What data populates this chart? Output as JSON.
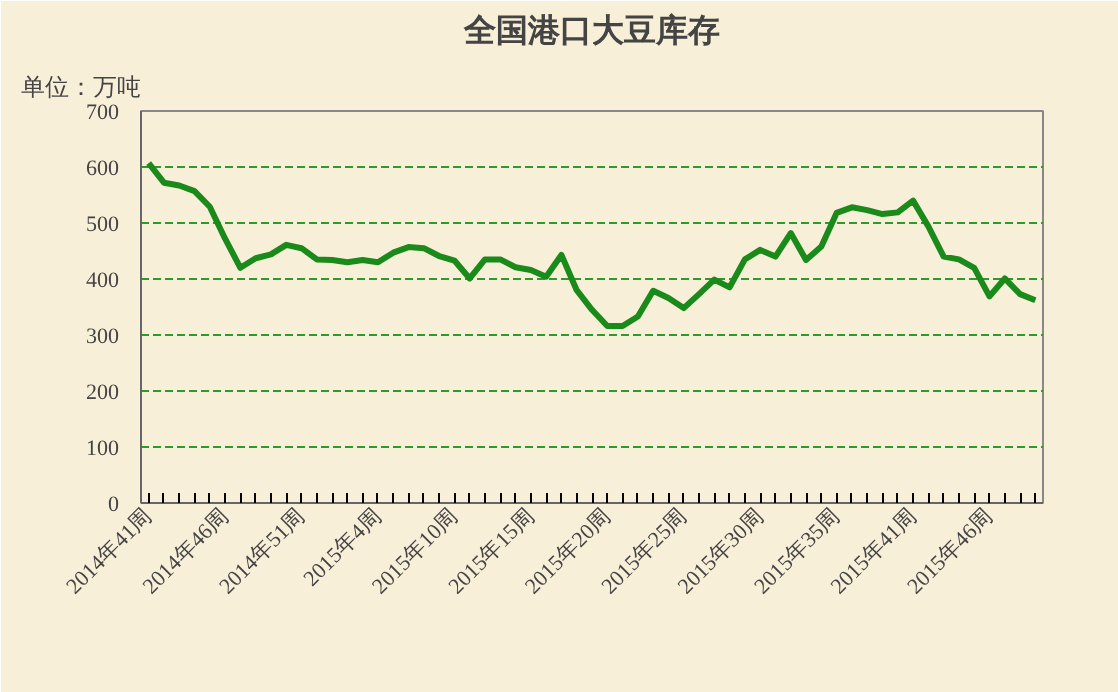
{
  "chart_data": {
    "type": "line",
    "title": "全国港口大豆库存",
    "ylabel": "单位：万吨",
    "categories": [
      "2014年41周",
      null,
      null,
      null,
      null,
      "2014年46周",
      null,
      null,
      null,
      null,
      "2014年51周",
      null,
      null,
      null,
      null,
      "2015年4周",
      null,
      null,
      null,
      null,
      "2015年10周",
      null,
      null,
      null,
      null,
      "2015年15周",
      null,
      null,
      null,
      null,
      "2015年20周",
      null,
      null,
      null,
      null,
      "2015年25周",
      null,
      null,
      null,
      null,
      "2015年30周",
      null,
      null,
      null,
      null,
      "2015年35周",
      null,
      null,
      null,
      null,
      "2015年41周",
      null,
      null,
      null,
      null,
      "2015年46周",
      null,
      null,
      null
    ],
    "series": [
      {
        "color": "#1a8a1a",
        "values": [
          607,
          572,
          567,
          557,
          529,
          472,
          420,
          437,
          444,
          461,
          455,
          435,
          434,
          430,
          434,
          430,
          447,
          457,
          455,
          441,
          433,
          401,
          435,
          435,
          421,
          416,
          404,
          443,
          380,
          345,
          316,
          316,
          333,
          379,
          366,
          348,
          373,
          399,
          385,
          435,
          452,
          440,
          482,
          434,
          458,
          518,
          528,
          523,
          516,
          519,
          540,
          494,
          440,
          435,
          420,
          369,
          401,
          373,
          362
        ]
      }
    ],
    "ylim": [
      0,
      700
    ],
    "yticks": [
      0,
      100,
      200,
      300,
      400,
      500,
      600,
      700
    ],
    "grid": "y",
    "marker": "none",
    "line_style": "solid"
  }
}
